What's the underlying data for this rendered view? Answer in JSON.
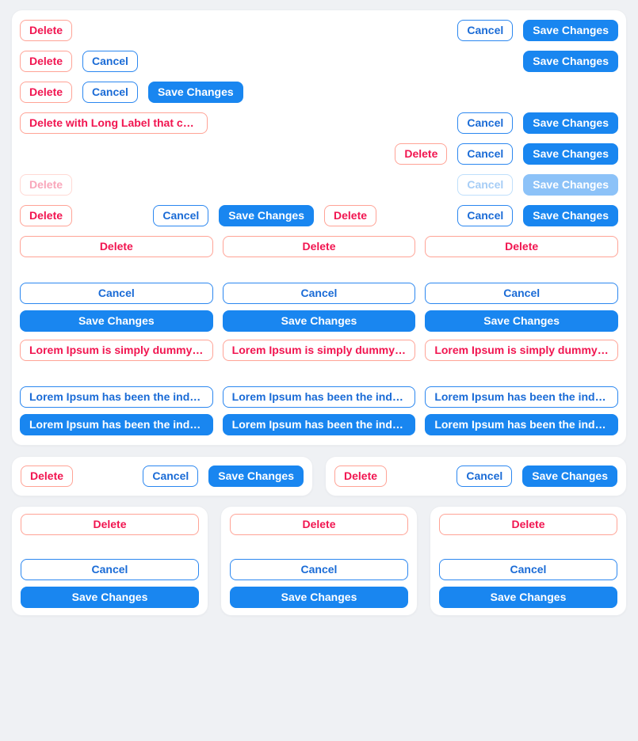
{
  "colors": {
    "page_bg": "#eff1f4",
    "card_bg": "#ffffff",
    "delete_text": "#f11550",
    "delete_border": "#ffa396",
    "cancel_text": "#1a6bd6",
    "cancel_border": "#2b87f0",
    "save_bg": "#1986f0",
    "save_text": "#ffffff",
    "delete_disabled_text": "#f9a6ba",
    "delete_disabled_border": "#ffd9d4",
    "cancel_disabled_text": "#a6cdf6",
    "cancel_disabled_border": "#bfdffb",
    "save_disabled_bg": "#8cc2f8"
  },
  "labels": {
    "delete": "Delete",
    "cancel": "Cancel",
    "save": "Save Changes",
    "delete_long": "Delete with Long Label that ca…",
    "lorem_delete": "Lorem Ipsum is simply dummy t…",
    "lorem_cancel": "Lorem Ipsum has been the indus…",
    "lorem_save": "Lorem Ipsum has been the indus…"
  }
}
